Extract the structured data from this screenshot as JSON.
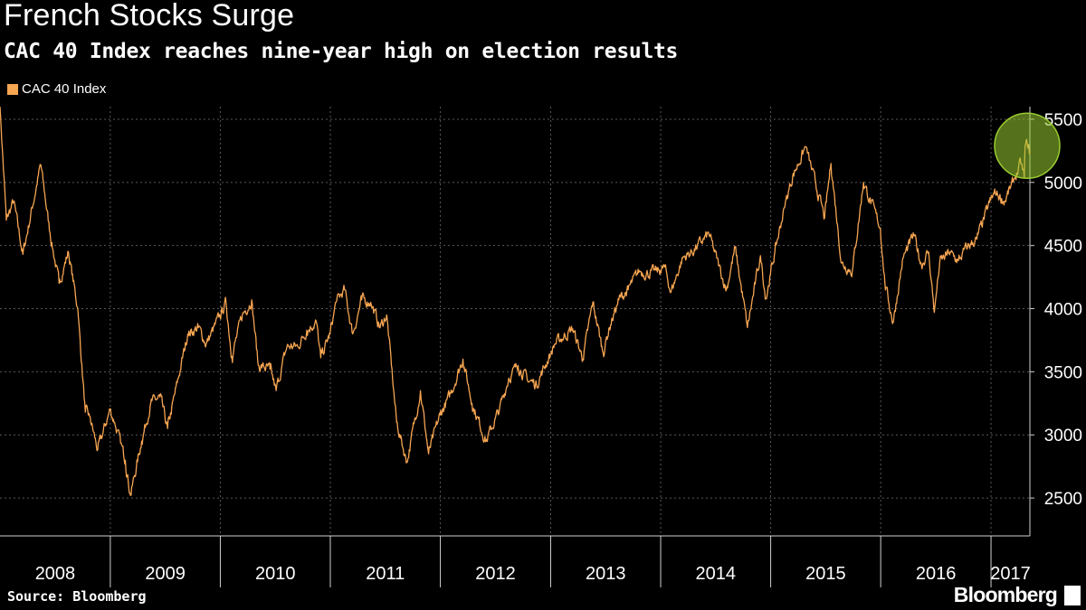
{
  "title": "French Stocks Surge",
  "subtitle": "CAC 40 Index reaches nine-year high on election results",
  "source": "Source: Bloomberg",
  "brand": "Bloomberg",
  "colors": {
    "series": "#f6a552",
    "background": "#000000",
    "highlight": "#9acd32"
  },
  "chart_data": {
    "type": "line",
    "legend": "top-left",
    "grid": true,
    "ylim": [
      2200,
      5600
    ],
    "yticks": [
      2500,
      3000,
      3500,
      4000,
      4500,
      5000,
      5500
    ],
    "years": [
      "2008",
      "2009",
      "2010",
      "2011",
      "2012",
      "2013",
      "2014",
      "2015",
      "2016",
      "2017"
    ],
    "xlim": [
      "2008-01-01",
      "2017-05-10"
    ],
    "series": [
      {
        "name": "CAC 40 Index",
        "points": [
          [
            "2008-01-01",
            5600
          ],
          [
            "2008-01-22",
            4700
          ],
          [
            "2008-02-15",
            4850
          ],
          [
            "2008-03-17",
            4430
          ],
          [
            "2008-05-15",
            5140
          ],
          [
            "2008-06-15",
            4600
          ],
          [
            "2008-07-15",
            4200
          ],
          [
            "2008-08-15",
            4450
          ],
          [
            "2008-09-15",
            4000
          ],
          [
            "2008-10-10",
            3180
          ],
          [
            "2008-10-24",
            3150
          ],
          [
            "2008-11-20",
            2880
          ],
          [
            "2008-12-31",
            3200
          ],
          [
            "2009-01-15",
            3100
          ],
          [
            "2009-02-20",
            2800
          ],
          [
            "2009-03-09",
            2520
          ],
          [
            "2009-04-15",
            2950
          ],
          [
            "2009-05-15",
            3250
          ],
          [
            "2009-06-15",
            3300
          ],
          [
            "2009-07-10",
            3050
          ],
          [
            "2009-08-15",
            3450
          ],
          [
            "2009-09-15",
            3800
          ],
          [
            "2009-10-20",
            3850
          ],
          [
            "2009-11-15",
            3720
          ],
          [
            "2009-12-31",
            3940
          ],
          [
            "2010-01-20",
            4050
          ],
          [
            "2010-02-08",
            3620
          ],
          [
            "2010-03-15",
            3950
          ],
          [
            "2010-04-15",
            4070
          ],
          [
            "2010-05-07",
            3550
          ],
          [
            "2010-06-15",
            3520
          ],
          [
            "2010-07-05",
            3350
          ],
          [
            "2010-08-10",
            3700
          ],
          [
            "2010-09-15",
            3700
          ],
          [
            "2010-10-15",
            3830
          ],
          [
            "2010-11-15",
            3900
          ],
          [
            "2010-11-30",
            3610
          ],
          [
            "2010-12-31",
            3800
          ],
          [
            "2011-01-20",
            4050
          ],
          [
            "2011-02-17",
            4150
          ],
          [
            "2011-03-16",
            3800
          ],
          [
            "2011-04-15",
            4070
          ],
          [
            "2011-05-15",
            4050
          ],
          [
            "2011-06-15",
            3850
          ],
          [
            "2011-07-07",
            3950
          ],
          [
            "2011-08-09",
            3100
          ],
          [
            "2011-09-12",
            2780
          ],
          [
            "2011-10-27",
            3350
          ],
          [
            "2011-11-23",
            2850
          ],
          [
            "2011-12-31",
            3160
          ],
          [
            "2012-01-31",
            3300
          ],
          [
            "2012-03-16",
            3600
          ],
          [
            "2012-04-15",
            3250
          ],
          [
            "2012-06-01",
            2950
          ],
          [
            "2012-07-15",
            3200
          ],
          [
            "2012-08-15",
            3450
          ],
          [
            "2012-09-15",
            3550
          ],
          [
            "2012-10-15",
            3440
          ],
          [
            "2012-11-15",
            3400
          ],
          [
            "2012-12-31",
            3640
          ],
          [
            "2013-01-15",
            3720
          ],
          [
            "2013-03-15",
            3840
          ],
          [
            "2013-04-18",
            3600
          ],
          [
            "2013-05-21",
            4050
          ],
          [
            "2013-06-24",
            3650
          ],
          [
            "2013-07-15",
            3850
          ],
          [
            "2013-08-15",
            4070
          ],
          [
            "2013-09-15",
            4150
          ],
          [
            "2013-10-22",
            4300
          ],
          [
            "2013-11-15",
            4280
          ],
          [
            "2013-12-31",
            4300
          ],
          [
            "2014-01-15",
            4330
          ],
          [
            "2014-02-04",
            4130
          ],
          [
            "2014-03-15",
            4400
          ],
          [
            "2014-04-15",
            4450
          ],
          [
            "2014-06-10",
            4590
          ],
          [
            "2014-08-07",
            4150
          ],
          [
            "2014-09-05",
            4480
          ],
          [
            "2014-10-16",
            3850
          ],
          [
            "2014-11-28",
            4420
          ],
          [
            "2014-12-16",
            4080
          ],
          [
            "2014-12-31",
            4270
          ],
          [
            "2015-01-15",
            4450
          ],
          [
            "2015-02-15",
            4800
          ],
          [
            "2015-03-15",
            5050
          ],
          [
            "2015-04-27",
            5280
          ],
          [
            "2015-06-29",
            4720
          ],
          [
            "2015-07-20",
            5150
          ],
          [
            "2015-08-24",
            4360
          ],
          [
            "2015-09-29",
            4300
          ],
          [
            "2015-11-05",
            5000
          ],
          [
            "2015-12-31",
            4640
          ],
          [
            "2016-01-15",
            4200
          ],
          [
            "2016-02-11",
            3890
          ],
          [
            "2016-03-15",
            4400
          ],
          [
            "2016-04-20",
            4580
          ],
          [
            "2016-05-15",
            4350
          ],
          [
            "2016-06-08",
            4450
          ],
          [
            "2016-06-27",
            3970
          ],
          [
            "2016-07-15",
            4370
          ],
          [
            "2016-08-15",
            4440
          ],
          [
            "2016-09-15",
            4380
          ],
          [
            "2016-10-15",
            4490
          ],
          [
            "2016-11-15",
            4550
          ],
          [
            "2016-12-31",
            4860
          ],
          [
            "2017-01-15",
            4920
          ],
          [
            "2017-02-15",
            4850
          ],
          [
            "2017-03-15",
            5000
          ],
          [
            "2017-04-10",
            5150
          ],
          [
            "2017-04-21",
            5040
          ],
          [
            "2017-04-24",
            5290
          ],
          [
            "2017-05-05",
            5300
          ],
          [
            "2017-05-08",
            5230
          ],
          [
            "2017-05-10",
            5250
          ]
        ]
      }
    ],
    "highlight": {
      "x": "2017-05-01",
      "y": 5290,
      "label": "nine-year high"
    }
  }
}
